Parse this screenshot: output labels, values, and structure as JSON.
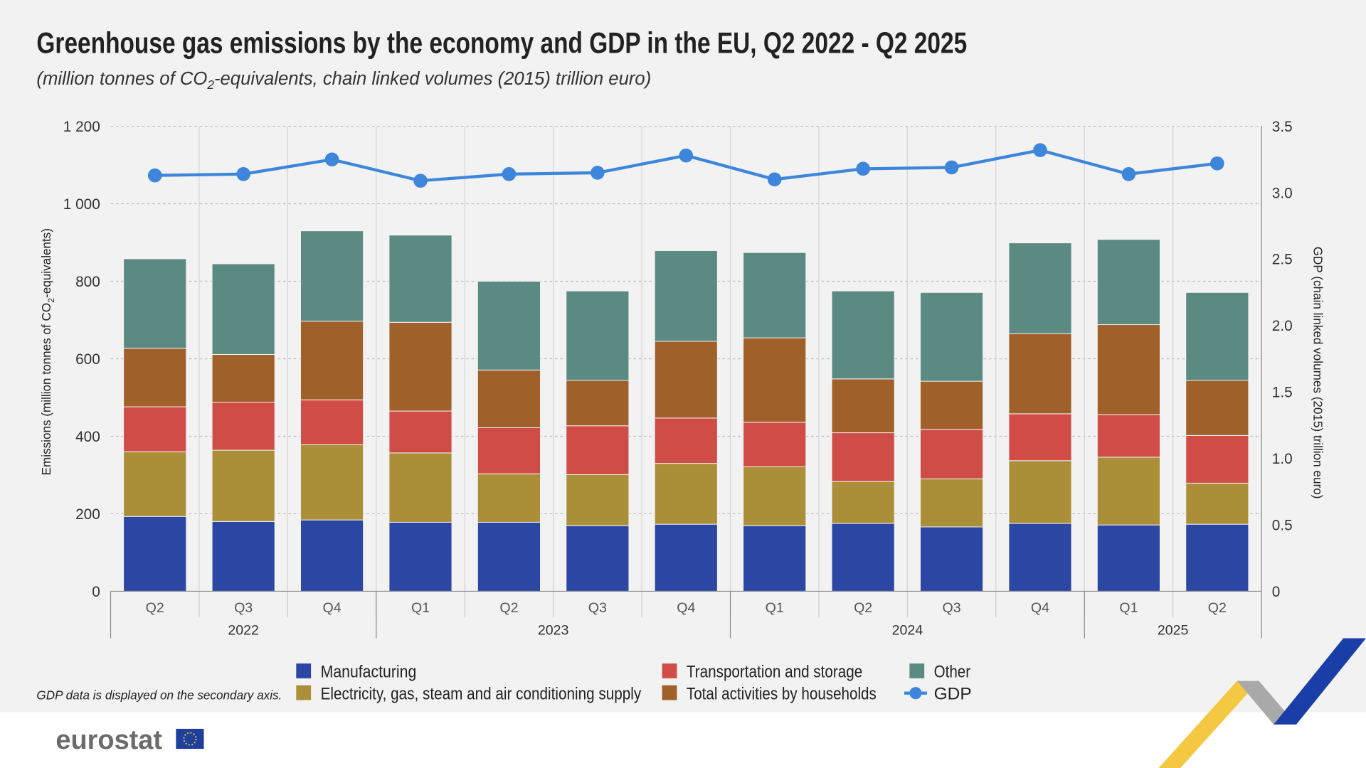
{
  "title": "Greenhouse gas emissions by the economy and GDP in the EU, Q2 2022 - Q2 2025",
  "subtitle_pre": "(million tonnes of CO",
  "subtitle_sub": "2",
  "subtitle_post": "-equivalents, chain linked volumes (2015) trillion euro)",
  "note": "GDP data is displayed on the secondary axis.",
  "logo": "eurostat",
  "chart_data": {
    "type": "bar",
    "stacked": true,
    "categories": [
      "Q2",
      "Q3",
      "Q4",
      "Q1",
      "Q2",
      "Q3",
      "Q4",
      "Q1",
      "Q2",
      "Q3",
      "Q4",
      "Q1",
      "Q2"
    ],
    "years": [
      {
        "label": "2022",
        "span": 3
      },
      {
        "label": "2023",
        "span": 4
      },
      {
        "label": "2024",
        "span": 4
      },
      {
        "label": "2025",
        "span": 2
      }
    ],
    "ylabel_pre": "Emissions (million tonnes of CO",
    "ylabel_sub": "2",
    "ylabel_post": "-equivalents)",
    "y2label": "GDP (chain linked volumes (2015) trillion euro)",
    "ylim": [
      0,
      1200
    ],
    "yticks": [
      "0",
      "200",
      "400",
      "600",
      "800",
      "1 000",
      "1 200"
    ],
    "y2lim": [
      0,
      3.5
    ],
    "y2ticks": [
      "0",
      "0.5",
      "1.0",
      "1.5",
      "2.0",
      "2.5",
      "3.0",
      "3.5"
    ],
    "grid": true,
    "legend_placement": "bottom",
    "series": [
      {
        "name": "Manufacturing",
        "color": "#2b46a3",
        "values": [
          193,
          180,
          184,
          178,
          178,
          169,
          173,
          169,
          175,
          166,
          175,
          171,
          173
        ]
      },
      {
        "name": "Electricity, gas, steam and air conditioning supply",
        "color": "#ab8f38",
        "values": [
          167,
          184,
          194,
          179,
          125,
          132,
          157,
          152,
          108,
          124,
          162,
          175,
          106
        ]
      },
      {
        "name": "Transportation and storage",
        "color": "#d04c47",
        "values": [
          116,
          124,
          116,
          108,
          119,
          126,
          117,
          115,
          126,
          128,
          121,
          110,
          123
        ]
      },
      {
        "name": "Total activities by households",
        "color": "#a0602a",
        "values": [
          151,
          123,
          203,
          229,
          149,
          117,
          198,
          218,
          139,
          124,
          207,
          232,
          142
        ]
      },
      {
        "name": "Other",
        "color": "#5b8a83",
        "values": [
          231,
          234,
          233,
          225,
          229,
          231,
          234,
          220,
          227,
          229,
          234,
          220,
          227
        ]
      }
    ],
    "line_series": {
      "name": "GDP",
      "axis": "secondary",
      "color": "#3d86db",
      "values": [
        3.13,
        3.14,
        3.25,
        3.09,
        3.14,
        3.15,
        3.28,
        3.1,
        3.18,
        3.19,
        3.32,
        3.14,
        3.22
      ]
    }
  }
}
